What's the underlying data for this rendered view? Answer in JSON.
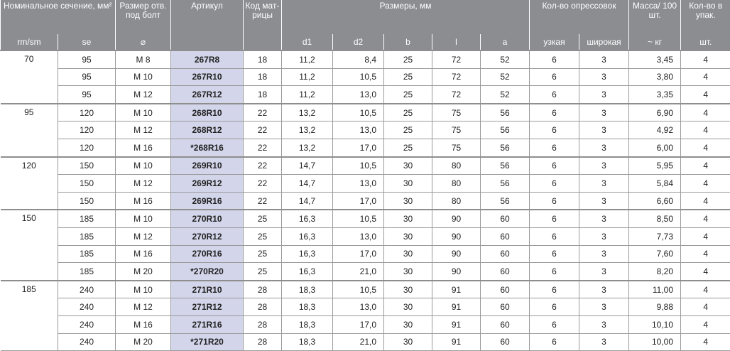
{
  "header": {
    "nominal": "Номинальное сечение, мм²",
    "bolt": "Размер отв. под болт",
    "article": "Артикул",
    "die_code": "Код мат-рицы",
    "dimensions": "Размеры, мм",
    "crimps": "Кол-во опрессовок",
    "mass": "Масса/ 100 шт.",
    "pack": "Кол-во в упак.",
    "sub": [
      "rm/sm",
      "se",
      "⌀",
      "",
      "",
      "d1",
      "d2",
      "b",
      "l",
      "a",
      "узкая",
      "широкая",
      "~ кг",
      "шт."
    ]
  },
  "groups": [
    {
      "rm": "70",
      "rows": [
        [
          "95",
          "M 8",
          "267R8",
          "18",
          "11,2",
          "8,4",
          "25",
          "72",
          "52",
          "6",
          "3",
          "3,45",
          "4"
        ],
        [
          "95",
          "M 10",
          "267R10",
          "18",
          "11,2",
          "10,5",
          "25",
          "72",
          "52",
          "6",
          "3",
          "3,80",
          "4"
        ],
        [
          "95",
          "M 12",
          "267R12",
          "18",
          "11,2",
          "13,0",
          "25",
          "72",
          "52",
          "6",
          "3",
          "3,35",
          "4"
        ]
      ]
    },
    {
      "rm": "95",
      "rows": [
        [
          "120",
          "M 10",
          "268R10",
          "22",
          "13,2",
          "10,5",
          "25",
          "75",
          "56",
          "6",
          "3",
          "6,90",
          "4"
        ],
        [
          "120",
          "M 12",
          "268R12",
          "22",
          "13,2",
          "13,0",
          "25",
          "75",
          "56",
          "6",
          "3",
          "4,92",
          "4"
        ],
        [
          "120",
          "M 16",
          "*268R16",
          "22",
          "13,2",
          "17,0",
          "25",
          "75",
          "56",
          "6",
          "3",
          "6,00",
          "4"
        ]
      ]
    },
    {
      "rm": "120",
      "rows": [
        [
          "150",
          "M 10",
          "269R10",
          "22",
          "14,7",
          "10,5",
          "30",
          "80",
          "56",
          "6",
          "3",
          "5,95",
          "4"
        ],
        [
          "150",
          "M 12",
          "269R12",
          "22",
          "14,7",
          "13,0",
          "30",
          "80",
          "56",
          "6",
          "3",
          "5,84",
          "4"
        ],
        [
          "150",
          "M 16",
          "269R16",
          "22",
          "14,7",
          "17,0",
          "30",
          "80",
          "56",
          "6",
          "3",
          "6,60",
          "4"
        ]
      ]
    },
    {
      "rm": "150",
      "rows": [
        [
          "185",
          "M 10",
          "270R10",
          "25",
          "16,3",
          "10,5",
          "30",
          "90",
          "60",
          "6",
          "3",
          "8,50",
          "4"
        ],
        [
          "185",
          "M 12",
          "270R12",
          "25",
          "16,3",
          "13,0",
          "30",
          "90",
          "60",
          "6",
          "3",
          "7,73",
          "4"
        ],
        [
          "185",
          "M 16",
          "270R16",
          "25",
          "16,3",
          "17,0",
          "30",
          "90",
          "60",
          "6",
          "3",
          "7,60",
          "4"
        ],
        [
          "185",
          "M 20",
          "*270R20",
          "25",
          "16,3",
          "21,0",
          "30",
          "90",
          "60",
          "6",
          "3",
          "8,20",
          "4"
        ]
      ]
    },
    {
      "rm": "185",
      "rows": [
        [
          "240",
          "M 10",
          "271R10",
          "28",
          "18,3",
          "10,5",
          "30",
          "91",
          "60",
          "6",
          "3",
          "11,00",
          "4"
        ],
        [
          "240",
          "M 12",
          "271R12",
          "28",
          "18,3",
          "13,0",
          "30",
          "91",
          "60",
          "6",
          "3",
          "9,88",
          "4"
        ],
        [
          "240",
          "M 16",
          "271R16",
          "28",
          "18,3",
          "17,0",
          "30",
          "91",
          "60",
          "6",
          "3",
          "10,10",
          "4"
        ],
        [
          "240",
          "M 20",
          "*271R20",
          "28",
          "18,3",
          "21,0",
          "30",
          "91",
          "60",
          "6",
          "3",
          "10,00",
          "4"
        ]
      ]
    }
  ],
  "colors": {
    "header_bg": "#8b8d91",
    "article_bg": "#d3d5ea"
  }
}
